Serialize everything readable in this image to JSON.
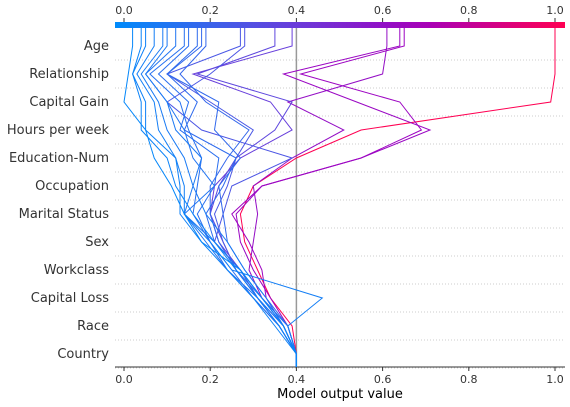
{
  "chart_data": {
    "type": "line",
    "subtype": "shap-decision-plot",
    "title": "",
    "xlabel": "Model output value",
    "ylabel": "",
    "xlim": [
      -0.02,
      1.02
    ],
    "x_ticks": [
      0.0,
      0.2,
      0.4,
      0.6,
      0.8,
      1.0
    ],
    "x_tick_labels": [
      "0.0",
      "0.2",
      "0.4",
      "0.6",
      "0.8",
      "1.0"
    ],
    "colorbar_ticks": [
      0.0,
      0.2,
      0.4,
      0.6,
      0.8,
      1.0
    ],
    "colorbar_tick_labels": [
      "0.0",
      "0.2",
      "0.4",
      "0.6",
      "0.8",
      "1.0"
    ],
    "base_value": 0.4,
    "features": [
      "Age",
      "Relationship",
      "Capital Gain",
      "Hours per week",
      "Education-Num",
      "Occupation",
      "Marital Status",
      "Sex",
      "Workclass",
      "Capital Loss",
      "Race",
      "Country"
    ],
    "y_gridlines": "dotted",
    "colormap": [
      "#008bfb",
      "#5b4be0",
      "#a000c0",
      "#ff0052"
    ],
    "series": [
      {
        "values": [
          1.0,
          1.0,
          0.99,
          0.55,
          0.4,
          0.3,
          0.27,
          0.28,
          0.31,
          0.34,
          0.39,
          0.4
        ]
      },
      {
        "values": [
          0.64,
          0.37,
          0.54,
          0.71,
          0.55,
          0.32,
          0.26,
          0.27,
          0.3,
          0.34,
          0.38,
          0.4
        ]
      },
      {
        "values": [
          0.65,
          0.41,
          0.64,
          0.69,
          0.55,
          0.32,
          0.25,
          0.29,
          0.32,
          0.33,
          0.37,
          0.4
        ]
      },
      {
        "values": [
          0.61,
          0.6,
          0.38,
          0.51,
          0.39,
          0.3,
          0.31,
          0.3,
          0.29,
          0.32,
          0.38,
          0.4
        ]
      },
      {
        "values": [
          0.39,
          0.16,
          0.34,
          0.39,
          0.27,
          0.21,
          0.2,
          0.22,
          0.27,
          0.31,
          0.36,
          0.4
        ]
      },
      {
        "values": [
          0.35,
          0.17,
          0.39,
          0.35,
          0.26,
          0.22,
          0.2,
          0.23,
          0.26,
          0.31,
          0.37,
          0.4
        ]
      },
      {
        "values": [
          0.28,
          0.2,
          0.1,
          0.18,
          0.39,
          0.25,
          0.23,
          0.21,
          0.27,
          0.32,
          0.37,
          0.4
        ]
      },
      {
        "values": [
          0.27,
          0.1,
          0.2,
          0.3,
          0.26,
          0.24,
          0.21,
          0.23,
          0.26,
          0.31,
          0.36,
          0.4
        ]
      },
      {
        "values": [
          0.19,
          0.13,
          0.19,
          0.29,
          0.24,
          0.2,
          0.2,
          0.22,
          0.26,
          0.32,
          0.37,
          0.4
        ]
      },
      {
        "values": [
          0.18,
          0.1,
          0.22,
          0.21,
          0.27,
          0.22,
          0.23,
          0.24,
          0.28,
          0.33,
          0.38,
          0.4
        ]
      },
      {
        "values": [
          0.17,
          0.1,
          0.17,
          0.14,
          0.26,
          0.23,
          0.19,
          0.21,
          0.27,
          0.31,
          0.36,
          0.4
        ]
      },
      {
        "values": [
          0.15,
          0.08,
          0.15,
          0.13,
          0.22,
          0.21,
          0.17,
          0.2,
          0.25,
          0.3,
          0.36,
          0.4
        ]
      },
      {
        "values": [
          0.14,
          0.06,
          0.13,
          0.15,
          0.18,
          0.17,
          0.16,
          0.2,
          0.24,
          0.3,
          0.36,
          0.4
        ]
      },
      {
        "values": [
          0.12,
          0.05,
          0.1,
          0.14,
          0.16,
          0.21,
          0.14,
          0.19,
          0.24,
          0.31,
          0.37,
          0.4
        ]
      },
      {
        "values": [
          0.1,
          0.05,
          0.1,
          0.12,
          0.18,
          0.16,
          0.14,
          0.21,
          0.27,
          0.32,
          0.38,
          0.4
        ]
      },
      {
        "values": [
          0.09,
          0.04,
          0.08,
          0.1,
          0.14,
          0.16,
          0.19,
          0.24,
          0.28,
          0.33,
          0.37,
          0.4
        ]
      },
      {
        "values": [
          0.07,
          0.03,
          0.07,
          0.08,
          0.12,
          0.14,
          0.14,
          0.2,
          0.25,
          0.46,
          0.38,
          0.4
        ]
      },
      {
        "values": [
          0.05,
          0.02,
          0.05,
          0.05,
          0.12,
          0.13,
          0.13,
          0.18,
          0.24,
          0.3,
          0.35,
          0.4
        ]
      },
      {
        "values": [
          0.04,
          0.02,
          0.04,
          0.04,
          0.1,
          0.12,
          0.16,
          0.21,
          0.26,
          0.31,
          0.36,
          0.4
        ]
      },
      {
        "values": [
          0.02,
          0.01,
          0.0,
          0.05,
          0.07,
          0.11,
          0.14,
          0.18,
          0.27,
          0.32,
          0.37,
          0.4
        ]
      }
    ]
  }
}
